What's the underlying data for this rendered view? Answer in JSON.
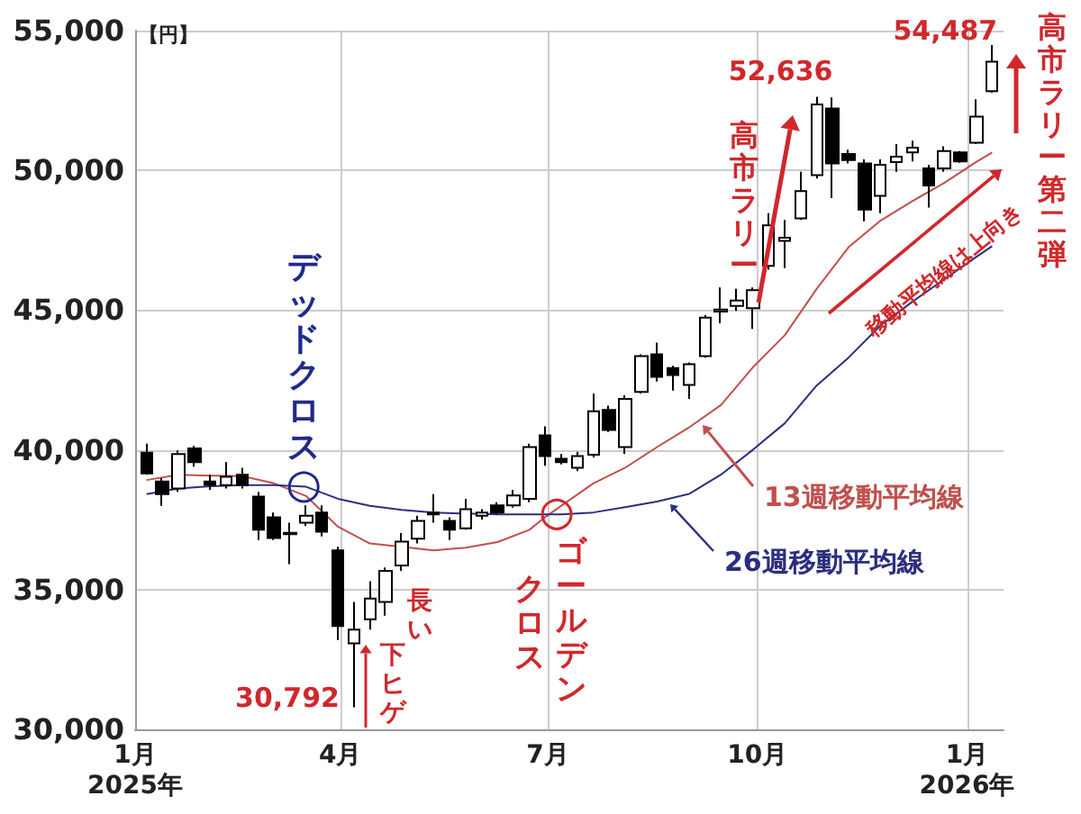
{
  "chart_data": {
    "type": "candlestick",
    "ylabel": "【円】",
    "xlim": [
      "2025-01-01",
      "2026-01-17"
    ],
    "xticks": [
      {
        "value": "2025-01-01",
        "label": "1月\n2025年"
      },
      {
        "value": "2025-04-01",
        "label": "4月"
      },
      {
        "value": "2025-07-01",
        "label": "7月"
      },
      {
        "value": "2025-10-01",
        "label": "10月"
      },
      {
        "value": "2026-01-01",
        "label": "1月\n2026年"
      }
    ],
    "ylim": [
      30000,
      55000
    ],
    "yticks": [
      {
        "value": 30000,
        "label": "30,000"
      },
      {
        "value": 35000,
        "label": "35,000"
      },
      {
        "value": 40000,
        "label": "40,000"
      },
      {
        "value": 45000,
        "label": "45,000"
      },
      {
        "value": 50000,
        "label": "50,000"
      },
      {
        "value": 55000,
        "label": "55,000"
      }
    ],
    "grid": true,
    "legend": false,
    "series": [
      {
        "color": "#000000",
        "x": [
          "2025-01-06",
          "2025-01-13",
          "2025-01-20",
          "2025-01-27",
          "2025-02-03",
          "2025-02-10",
          "2025-02-17",
          "2025-02-24",
          "2025-03-03",
          "2025-03-10",
          "2025-03-17",
          "2025-03-24",
          "2025-03-31",
          "2025-04-07",
          "2025-04-14",
          "2025-04-21",
          "2025-04-28",
          "2025-05-05",
          "2025-05-12",
          "2025-05-19",
          "2025-05-26",
          "2025-06-02",
          "2025-06-09",
          "2025-06-16",
          "2025-06-23",
          "2025-06-30",
          "2025-07-07",
          "2025-07-14",
          "2025-07-21",
          "2025-07-28",
          "2025-08-04",
          "2025-08-11",
          "2025-08-18",
          "2025-08-25",
          "2025-09-01",
          "2025-09-08",
          "2025-09-15",
          "2025-09-22",
          "2025-09-29",
          "2025-10-06",
          "2025-10-13",
          "2025-10-20",
          "2025-10-27",
          "2025-11-03",
          "2025-11-10",
          "2025-11-17",
          "2025-11-24",
          "2025-12-01",
          "2025-12-08",
          "2025-12-15",
          "2025-12-22",
          "2025-12-29",
          "2026-01-05",
          "2026-01-12"
        ],
        "ohlc": [
          [
            39900,
            40220,
            39110,
            39160
          ],
          [
            38870,
            38990,
            38000,
            38420
          ],
          [
            38620,
            39980,
            38500,
            39850
          ],
          [
            40050,
            40150,
            39400,
            39560
          ],
          [
            38870,
            39110,
            38570,
            38750
          ],
          [
            38740,
            39560,
            38620,
            39040
          ],
          [
            39110,
            39360,
            38620,
            38740
          ],
          [
            38330,
            38500,
            36770,
            37140
          ],
          [
            37590,
            37760,
            36770,
            36850
          ],
          [
            36980,
            37390,
            35910,
            37030
          ],
          [
            37390,
            38010,
            37270,
            37640
          ],
          [
            37760,
            38010,
            36900,
            37070
          ],
          [
            36400,
            36530,
            33200,
            33700
          ],
          [
            33080,
            34560,
            30792,
            33570
          ],
          [
            33940,
            35300,
            33570,
            34680
          ],
          [
            34560,
            35790,
            34070,
            35670
          ],
          [
            35860,
            37020,
            35670,
            36720
          ],
          [
            36820,
            37640,
            36650,
            37460
          ],
          [
            37690,
            38420,
            37390,
            37760
          ],
          [
            37460,
            37590,
            36770,
            37140
          ],
          [
            37190,
            38250,
            37140,
            37880
          ],
          [
            37640,
            37880,
            37510,
            37760
          ],
          [
            38010,
            38130,
            37690,
            37760
          ],
          [
            38010,
            38570,
            37930,
            38370
          ],
          [
            38250,
            40220,
            38130,
            40100
          ],
          [
            40520,
            40840,
            39430,
            39780
          ],
          [
            39680,
            39850,
            39480,
            39560
          ],
          [
            39360,
            39930,
            39240,
            39780
          ],
          [
            39830,
            42020,
            39730,
            41380
          ],
          [
            41430,
            41580,
            40640,
            40710
          ],
          [
            40100,
            41950,
            39850,
            41820
          ],
          [
            42070,
            43420,
            42020,
            43350
          ],
          [
            43420,
            43840,
            42440,
            42610
          ],
          [
            42930,
            43010,
            42120,
            42680
          ],
          [
            42320,
            43130,
            41820,
            43060
          ],
          [
            43350,
            44830,
            43300,
            44730
          ],
          [
            44950,
            45810,
            44530,
            45020
          ],
          [
            45150,
            45760,
            44970,
            45340
          ],
          [
            45070,
            45810,
            44330,
            45710
          ],
          [
            46580,
            48470,
            46450,
            48030
          ],
          [
            47480,
            48230,
            46500,
            47590
          ],
          [
            48280,
            49950,
            48230,
            49260
          ],
          [
            49830,
            52636,
            49710,
            52360
          ],
          [
            52210,
            52610,
            49010,
            50250
          ],
          [
            50590,
            50740,
            50250,
            50370
          ],
          [
            50250,
            50390,
            48180,
            48600
          ],
          [
            49090,
            50390,
            48470,
            50200
          ],
          [
            50300,
            50940,
            49950,
            50490
          ],
          [
            50640,
            51060,
            50320,
            50810
          ],
          [
            50070,
            50200,
            48670,
            49460
          ],
          [
            50070,
            50860,
            49950,
            50690
          ],
          [
            50640,
            50690,
            50270,
            50320
          ],
          [
            50990,
            52540,
            50940,
            51920
          ],
          [
            52830,
            54487,
            52780,
            53890
          ]
        ]
      },
      {
        "type": "line",
        "name": "13週移動平均線",
        "color": "#c0504d",
        "x": [
          "2025-01-06",
          "2025-01-20",
          "2025-02-03",
          "2025-02-17",
          "2025-03-03",
          "2025-03-17",
          "2025-03-31",
          "2025-04-14",
          "2025-04-28",
          "2025-05-12",
          "2025-05-26",
          "2025-06-09",
          "2025-06-23",
          "2025-06-30",
          "2025-07-07",
          "2025-07-21",
          "2025-08-04",
          "2025-08-18",
          "2025-09-01",
          "2025-09-15",
          "2025-09-29",
          "2025-10-13",
          "2025-10-27",
          "2025-11-10",
          "2025-11-24",
          "2025-12-08",
          "2025-12-22",
          "2026-01-05",
          "2026-01-12"
        ],
        "values": [
          38920,
          39110,
          39080,
          39060,
          38800,
          38350,
          37250,
          36650,
          36530,
          36400,
          36500,
          36700,
          37140,
          37600,
          38000,
          38800,
          39360,
          40100,
          40800,
          41600,
          42950,
          44100,
          45760,
          47250,
          48200,
          48900,
          49550,
          50300,
          50640
        ]
      },
      {
        "type": "line",
        "name": "26週移動平均線",
        "color": "#2b2e7f",
        "x": [
          "2025-01-06",
          "2025-01-20",
          "2025-02-03",
          "2025-02-17",
          "2025-03-03",
          "2025-03-17",
          "2025-03-31",
          "2025-04-14",
          "2025-04-28",
          "2025-05-12",
          "2025-05-26",
          "2025-06-09",
          "2025-06-23",
          "2025-07-07",
          "2025-07-21",
          "2025-08-04",
          "2025-08-18",
          "2025-09-01",
          "2025-09-15",
          "2025-09-29",
          "2025-10-13",
          "2025-10-27",
          "2025-11-10",
          "2025-11-24",
          "2025-12-08",
          "2025-12-22",
          "2026-01-05",
          "2026-01-12"
        ],
        "values": [
          38420,
          38620,
          38700,
          38740,
          38740,
          38680,
          38250,
          38000,
          37850,
          37760,
          37720,
          37690,
          37690,
          37690,
          37760,
          37950,
          38150,
          38420,
          39110,
          40000,
          40950,
          42300,
          43300,
          44450,
          45300,
          46100,
          46900,
          47290
        ]
      }
    ],
    "annotations": [
      {
        "text": "52,636",
        "x": "2025-10-27",
        "y": 52636
      },
      {
        "text": "54,487",
        "x": "2026-01-12",
        "y": 54487
      },
      {
        "text": "30,792",
        "x": "2025-04-07",
        "y": 30792
      },
      {
        "text": "デッドクロス",
        "x": "2025-03-16",
        "y": 38670
      },
      {
        "text": "ゴールデン",
        "x": "2025-07-05",
        "y": 37690
      },
      "クロス",
      "長い下ヒゲ",
      "高市ラリー",
      "高市ラリー第二弾",
      "移動平均線は上向き"
    ]
  }
}
